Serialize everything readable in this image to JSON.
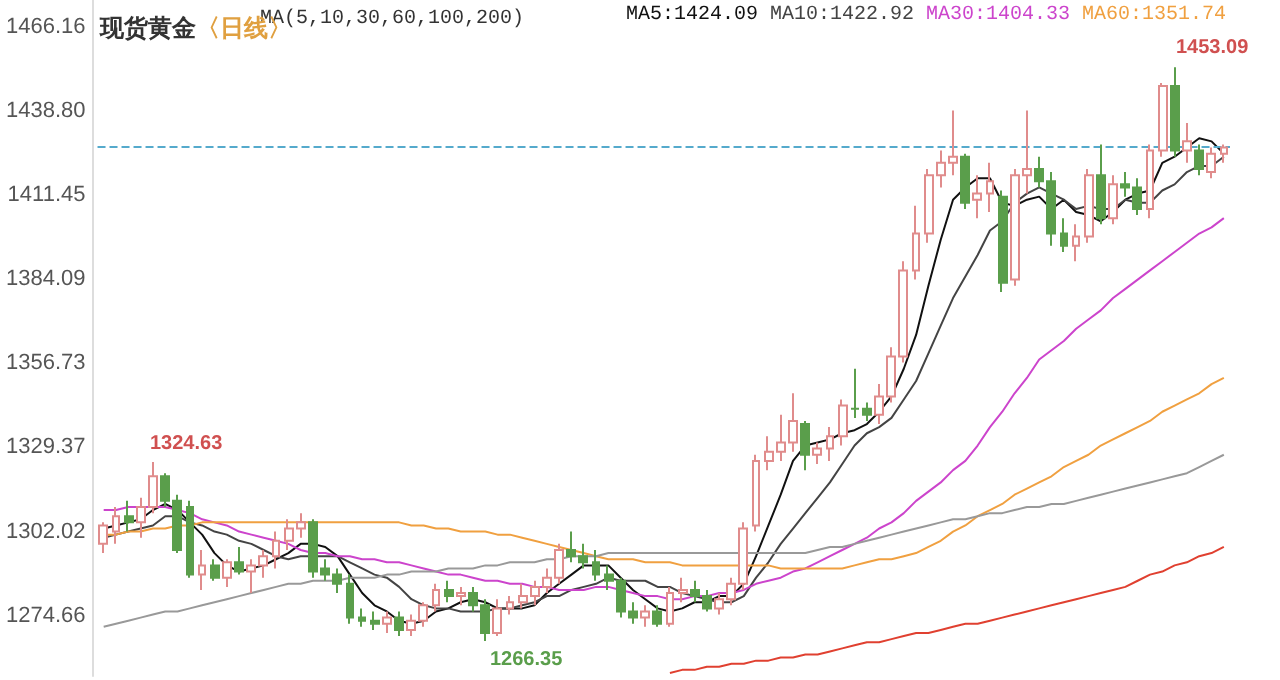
{
  "chart_data": {
    "type": "candlestick",
    "title": "现货黄金",
    "subtitle": "〈日线〉",
    "annotations": [
      "MA(5,10,30,60,100,200)",
      "1324.63",
      "1266.35",
      "1453.09"
    ],
    "categories": [
      null,
      null,
      null,
      null,
      null,
      null,
      null,
      null,
      null,
      null,
      null,
      null,
      null,
      null,
      null,
      null,
      null,
      null,
      null,
      null,
      null,
      null,
      null,
      null,
      null,
      null,
      null,
      null,
      null,
      null,
      null,
      null,
      null,
      null,
      null,
      null,
      null,
      null,
      null,
      null,
      null,
      null,
      null,
      null,
      null,
      null,
      null,
      null,
      null,
      null,
      null,
      null,
      null,
      null,
      null,
      null,
      null,
      null,
      null,
      null,
      null,
      null,
      null,
      null,
      null,
      null,
      null,
      null,
      null,
      null,
      null,
      null,
      null,
      null,
      null,
      null,
      null,
      null,
      null,
      null,
      null,
      null,
      null,
      null,
      null,
      null,
      null,
      null,
      null,
      null,
      null,
      null
    ],
    "ohlc": [
      [
        1298,
        1305,
        1295,
        1304
      ],
      [
        1302,
        1310,
        1298,
        1307
      ],
      [
        1307,
        1312,
        1302,
        1305
      ],
      [
        1305,
        1313,
        1300,
        1310
      ],
      [
        1310,
        1324.63,
        1308,
        1320
      ],
      [
        1320,
        1321,
        1310,
        1312
      ],
      [
        1312,
        1314,
        1295,
        1296
      ],
      [
        1310,
        1312,
        1287,
        1288
      ],
      [
        1288,
        1296,
        1283,
        1291
      ],
      [
        1291,
        1293,
        1286,
        1287
      ],
      [
        1287,
        1293,
        1284,
        1292
      ],
      [
        1292,
        1297,
        1288,
        1289
      ],
      [
        1289,
        1293,
        1282,
        1291
      ],
      [
        1291,
        1296,
        1287,
        1294
      ],
      [
        1294,
        1302,
        1290,
        1299
      ],
      [
        1299,
        1306,
        1296,
        1303
      ],
      [
        1303,
        1308,
        1300,
        1305
      ],
      [
        1305,
        1306,
        1287,
        1289
      ],
      [
        1290,
        1293,
        1286,
        1288
      ],
      [
        1288,
        1290,
        1282,
        1285
      ],
      [
        1285,
        1288,
        1272,
        1274
      ],
      [
        1274,
        1277,
        1271,
        1273
      ],
      [
        1273,
        1276,
        1270,
        1272
      ],
      [
        1272,
        1276,
        1269,
        1274
      ],
      [
        1274,
        1276,
        1268,
        1270
      ],
      [
        1270,
        1275,
        1268,
        1273
      ],
      [
        1273,
        1279,
        1271,
        1278
      ],
      [
        1278,
        1285,
        1276,
        1283
      ],
      [
        1283,
        1286,
        1279,
        1281
      ],
      [
        1281,
        1284,
        1278,
        1282
      ],
      [
        1282,
        1284,
        1276,
        1278
      ],
      [
        1278,
        1280,
        1266.35,
        1269
      ],
      [
        1269,
        1280,
        1268,
        1277
      ],
      [
        1277,
        1281,
        1275,
        1279
      ],
      [
        1279,
        1285,
        1277,
        1281
      ],
      [
        1281,
        1286,
        1278,
        1284
      ],
      [
        1284,
        1290,
        1282,
        1287
      ],
      [
        1287,
        1298,
        1285,
        1296
      ],
      [
        1296,
        1302,
        1292,
        1294
      ],
      [
        1294,
        1298,
        1290,
        1292
      ],
      [
        1292,
        1296,
        1286,
        1288
      ],
      [
        1288,
        1291,
        1283,
        1286
      ],
      [
        1286,
        1287,
        1274,
        1276
      ],
      [
        1276,
        1279,
        1272,
        1274
      ],
      [
        1274,
        1278,
        1271,
        1276
      ],
      [
        1276,
        1278,
        1271,
        1272
      ],
      [
        1272,
        1284,
        1271,
        1282
      ],
      [
        1282,
        1287,
        1279,
        1283
      ],
      [
        1283,
        1286,
        1279,
        1281
      ],
      [
        1281,
        1283,
        1276,
        1277
      ],
      [
        1277,
        1282,
        1275,
        1280
      ],
      [
        1280,
        1287,
        1278,
        1285
      ],
      [
        1285,
        1305,
        1283,
        1303
      ],
      [
        1304,
        1327,
        1302,
        1325
      ],
      [
        1325,
        1333,
        1322,
        1328
      ],
      [
        1328,
        1340,
        1325,
        1331
      ],
      [
        1331,
        1347,
        1328,
        1338
      ],
      [
        1337,
        1338,
        1322,
        1327
      ],
      [
        1327,
        1331,
        1324,
        1329
      ],
      [
        1329,
        1336,
        1325,
        1333
      ],
      [
        1333,
        1345,
        1330,
        1343
      ],
      [
        1342,
        1355,
        1339,
        1342
      ],
      [
        1342,
        1344,
        1338,
        1340
      ],
      [
        1340,
        1350,
        1337,
        1346
      ],
      [
        1346,
        1362,
        1344,
        1359
      ],
      [
        1359,
        1390,
        1357,
        1387
      ],
      [
        1387,
        1408,
        1384,
        1399
      ],
      [
        1399,
        1420,
        1396,
        1418
      ],
      [
        1418,
        1426,
        1414,
        1422
      ],
      [
        1422,
        1439,
        1418,
        1424
      ],
      [
        1424,
        1425,
        1407,
        1409
      ],
      [
        1410,
        1418,
        1404,
        1412
      ],
      [
        1412,
        1422,
        1406,
        1416
      ],
      [
        1411,
        1413,
        1380,
        1383
      ],
      [
        1384,
        1420,
        1382,
        1418
      ],
      [
        1418,
        1439,
        1412,
        1420
      ],
      [
        1420,
        1424,
        1414,
        1416
      ],
      [
        1416,
        1419,
        1395,
        1399
      ],
      [
        1399,
        1404,
        1393,
        1395
      ],
      [
        1395,
        1402,
        1390,
        1398
      ],
      [
        1398,
        1420,
        1396,
        1418
      ],
      [
        1418,
        1428,
        1402,
        1404
      ],
      [
        1404,
        1418,
        1402,
        1415
      ],
      [
        1415,
        1419,
        1411,
        1414
      ],
      [
        1414,
        1417,
        1405,
        1407
      ],
      [
        1407,
        1428,
        1404,
        1426
      ],
      [
        1426,
        1448,
        1424,
        1447
      ],
      [
        1447,
        1453.09,
        1424,
        1426
      ],
      [
        1426,
        1435,
        1422,
        1429
      ],
      [
        1426,
        1428,
        1418,
        1420
      ],
      [
        1419,
        1427,
        1417,
        1425
      ],
      [
        1425,
        1428,
        1422,
        1427
      ]
    ],
    "colors": [
      "#e08c8c",
      "#e08c8c",
      "#5a9e4b",
      "#e08c8c",
      "#e08c8c",
      "#5a9e4b",
      "#5a9e4b",
      "#5a9e4b",
      "#e08c8c",
      "#5a9e4b",
      "#e08c8c",
      "#5a9e4b",
      "#e08c8c",
      "#e08c8c",
      "#e08c8c",
      "#e08c8c",
      "#e08c8c",
      "#5a9e4b",
      "#5a9e4b",
      "#5a9e4b",
      "#5a9e4b",
      "#5a9e4b",
      "#5a9e4b",
      "#e08c8c",
      "#5a9e4b",
      "#e08c8c",
      "#e08c8c",
      "#e08c8c",
      "#5a9e4b",
      "#e08c8c",
      "#5a9e4b",
      "#5a9e4b",
      "#e08c8c",
      "#e08c8c",
      "#e08c8c",
      "#e08c8c",
      "#e08c8c",
      "#e08c8c",
      "#5a9e4b",
      "#5a9e4b",
      "#5a9e4b",
      "#5a9e4b",
      "#5a9e4b",
      "#5a9e4b",
      "#e08c8c",
      "#5a9e4b",
      "#e08c8c",
      "#e08c8c",
      "#5a9e4b",
      "#5a9e4b",
      "#e08c8c",
      "#e08c8c",
      "#e08c8c",
      "#e08c8c",
      "#e08c8c",
      "#e08c8c",
      "#e08c8c",
      "#5a9e4b",
      "#e08c8c",
      "#e08c8c",
      "#e08c8c",
      "#5a9e4b",
      "#5a9e4b",
      "#e08c8c",
      "#e08c8c",
      "#e08c8c",
      "#e08c8c",
      "#e08c8c",
      "#e08c8c",
      "#e08c8c",
      "#5a9e4b",
      "#e08c8c",
      "#e08c8c",
      "#5a9e4b",
      "#e08c8c",
      "#e08c8c",
      "#5a9e4b",
      "#5a9e4b",
      "#5a9e4b",
      "#e08c8c",
      "#e08c8c",
      "#5a9e4b",
      "#e08c8c",
      "#5a9e4b",
      "#5a9e4b",
      "#e08c8c",
      "#e08c8c",
      "#5a9e4b",
      "#e08c8c",
      "#5a9e4b",
      "#e08c8c",
      "#e08c8c"
    ],
    "series": [
      {
        "type": "line",
        "name": "MA5:1424.09",
        "color": "#111111",
        "values": [
          1303,
          1304,
          1305,
          1306,
          1309,
          1311,
          1309,
          1305,
          1301,
          1295,
          1291,
          1289,
          1290,
          1291,
          1293,
          1295,
          1298,
          1298,
          1297,
          1294,
          1288,
          1282,
          1278,
          1276,
          1273,
          1272,
          1273,
          1276,
          1277,
          1279,
          1280,
          1279,
          1277,
          1277,
          1277,
          1278,
          1282,
          1285,
          1288,
          1291,
          1291,
          1291,
          1287,
          1283,
          1280,
          1277,
          1276,
          1277,
          1279,
          1279,
          1281,
          1281,
          1285,
          1294,
          1304,
          1314,
          1325,
          1330,
          1331,
          1332,
          1334,
          1335,
          1337,
          1341,
          1346,
          1355,
          1366,
          1382,
          1397,
          1410,
          1414,
          1417,
          1417,
          1409,
          1408,
          1410,
          1411,
          1407,
          1410,
          1406,
          1405,
          1403,
          1406,
          1410,
          1412,
          1413,
          1422,
          1424,
          1427,
          1430,
          1429,
          1425
        ]
      },
      {
        "type": "line",
        "name": "MA10:1422.92",
        "color": "#444444",
        "values": [
          1300,
          1301,
          1302,
          1303,
          1304,
          1307,
          1307,
          1305,
          1304,
          1302,
          1301,
          1299,
          1298,
          1296,
          1294,
          1293,
          1294,
          1294,
          1294,
          1294,
          1292,
          1290,
          1288,
          1287,
          1284,
          1280,
          1278,
          1277,
          1277,
          1276,
          1276,
          1276,
          1277,
          1277,
          1278,
          1279,
          1281,
          1281,
          1283,
          1284,
          1285,
          1287,
          1286,
          1286,
          1286,
          1284,
          1284,
          1282,
          1281,
          1280,
          1279,
          1279,
          1281,
          1287,
          1292,
          1298,
          1303,
          1308,
          1313,
          1318,
          1324,
          1330,
          1334,
          1336,
          1339,
          1345,
          1351,
          1360,
          1369,
          1378,
          1385,
          1392,
          1400,
          1403,
          1409,
          1412,
          1414,
          1412,
          1410,
          1407,
          1408,
          1407,
          1407,
          1410,
          1409,
          1409,
          1413,
          1415,
          1419,
          1421,
          1421,
          1424
        ]
      },
      {
        "type": "line",
        "name": "MA30:1404.33",
        "color": "#cc44cc",
        "values": [
          1309,
          1309,
          1310,
          1310,
          1310,
          1310,
          1309,
          1308,
          1306,
          1305,
          1304,
          1302,
          1301,
          1300,
          1299,
          1298,
          1296,
          1295,
          1295,
          1294,
          1294,
          1293,
          1293,
          1292,
          1292,
          1291,
          1290,
          1289,
          1288,
          1288,
          1287,
          1286,
          1286,
          1285,
          1285,
          1284,
          1284,
          1283,
          1283,
          1283,
          1284,
          1284,
          1283,
          1282,
          1281,
          1281,
          1280,
          1280,
          1281,
          1281,
          1282,
          1282,
          1283,
          1285,
          1286,
          1287,
          1289,
          1290,
          1292,
          1294,
          1296,
          1298,
          1300,
          1303,
          1305,
          1308,
          1312,
          1315,
          1318,
          1322,
          1325,
          1330,
          1336,
          1341,
          1347,
          1352,
          1358,
          1361,
          1364,
          1368,
          1371,
          1374,
          1378,
          1381,
          1384,
          1387,
          1390,
          1393,
          1396,
          1399,
          1401,
          1404
        ]
      },
      {
        "type": "line",
        "name": "MA60:1351.74",
        "color": "#f0a040",
        "values": [
          1301,
          1301,
          1302,
          1302,
          1303,
          1303,
          1304,
          1304,
          1305,
          1305,
          1305,
          1305,
          1305,
          1305,
          1305,
          1305,
          1305,
          1305,
          1305,
          1305,
          1305,
          1305,
          1305,
          1305,
          1305,
          1304,
          1304,
          1303,
          1303,
          1302,
          1302,
          1302,
          1301,
          1301,
          1300,
          1299,
          1298,
          1297,
          1296,
          1295,
          1294,
          1293,
          1293,
          1293,
          1292,
          1292,
          1292,
          1291,
          1291,
          1291,
          1291,
          1291,
          1291,
          1291,
          1291,
          1290,
          1290,
          1290,
          1290,
          1290,
          1290,
          1291,
          1292,
          1293,
          1293,
          1294,
          1295,
          1297,
          1299,
          1302,
          1304,
          1307,
          1309,
          1311,
          1314,
          1316,
          1318,
          1320,
          1323,
          1325,
          1327,
          1330,
          1332,
          1334,
          1336,
          1338,
          1341,
          1343,
          1345,
          1347,
          1350,
          1352
        ]
      },
      {
        "type": "line",
        "color": "#999999",
        "values": [
          1271,
          1272,
          1273,
          1274,
          1275,
          1276,
          1276,
          1277,
          1278,
          1279,
          1280,
          1281,
          1282,
          1283,
          1284,
          1285,
          1285,
          1286,
          1286,
          1286,
          1287,
          1287,
          1287,
          1288,
          1288,
          1289,
          1289,
          1289,
          1290,
          1290,
          1290,
          1291,
          1291,
          1292,
          1292,
          1292,
          1293,
          1293,
          1294,
          1294,
          1294,
          1295,
          1295,
          1295,
          1295,
          1295,
          1295,
          1295,
          1295,
          1295,
          1295,
          1295,
          1295,
          1295,
          1295,
          1295,
          1295,
          1295,
          1296,
          1297,
          1297,
          1298,
          1299,
          1300,
          1301,
          1302,
          1303,
          1304,
          1305,
          1306,
          1306,
          1307,
          1308,
          1308,
          1309,
          1310,
          1310,
          1311,
          1311,
          1312,
          1313,
          1314,
          1315,
          1316,
          1317,
          1318,
          1319,
          1320,
          1321,
          1323,
          1325,
          1327
        ]
      },
      {
        "type": "line",
        "color": "#e04030",
        "values": [
          null,
          null,
          null,
          null,
          null,
          null,
          null,
          null,
          null,
          null,
          null,
          null,
          null,
          null,
          null,
          null,
          null,
          null,
          null,
          null,
          null,
          null,
          null,
          null,
          null,
          null,
          null,
          null,
          null,
          null,
          null,
          null,
          null,
          null,
          null,
          null,
          null,
          null,
          null,
          null,
          null,
          null,
          null,
          null,
          null,
          null,
          1256,
          1257,
          1257,
          1258,
          1258,
          1259,
          1259,
          1260,
          1260,
          1261,
          1261,
          1262,
          1262,
          1263,
          1264,
          1265,
          1266,
          1266,
          1267,
          1268,
          1269,
          1269,
          1270,
          1271,
          1272,
          1272,
          1273,
          1274,
          1275,
          1276,
          1277,
          1278,
          1279,
          1280,
          1281,
          1282,
          1283,
          1284,
          1286,
          1288,
          1289,
          1291,
          1292,
          1294,
          1295,
          1297
        ]
      }
    ],
    "ref_lines": [
      {
        "axis": "y",
        "value": 1427,
        "color": "#55aacc",
        "line_style": "dashed"
      }
    ],
    "ylim": [
      1255,
      1475
    ],
    "yticks": [
      1274.66,
      1302.02,
      1329.37,
      1356.73,
      1384.09,
      1411.45,
      {
        "value": 1438.8,
        "label": "1438.80"
      },
      1466.16
    ],
    "legend": "top right",
    "tick_labels": "y"
  }
}
